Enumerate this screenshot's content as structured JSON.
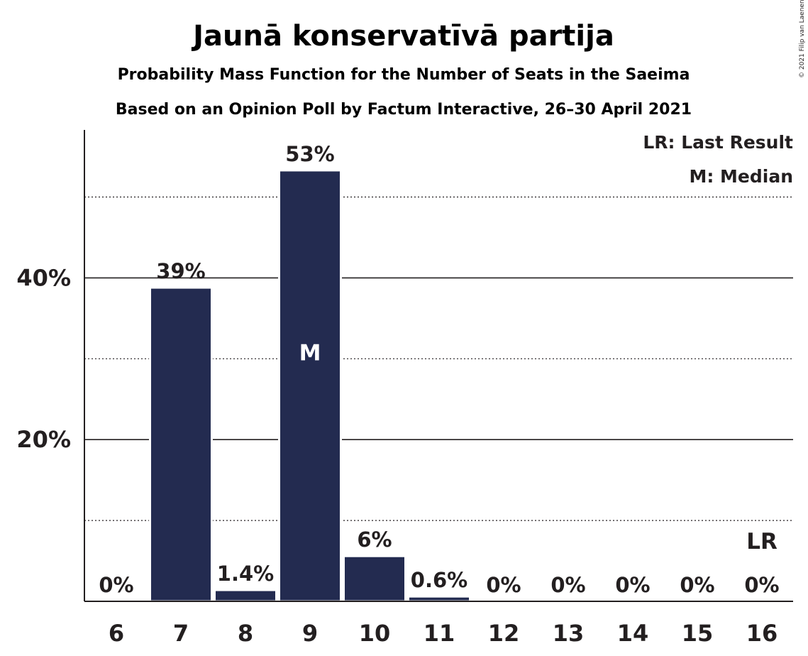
{
  "title": "Jaunā konservatīvā partija",
  "subtitle1": "Probability Mass Function for the Number of Seats in the Saeima",
  "subtitle2": "Based on an Opinion Poll by Factum Interactive, 26–30 April 2021",
  "copyright": "© 2021 Filip van Laenen",
  "legend": {
    "last_result": "LR: Last Result",
    "median": "M: Median"
  },
  "colors": {
    "bar": "#232b50",
    "text": "#231f20"
  },
  "chart_data": {
    "type": "bar",
    "xlabel": "",
    "ylabel": "",
    "categories": [
      "6",
      "7",
      "8",
      "9",
      "10",
      "11",
      "12",
      "13",
      "14",
      "15",
      "16"
    ],
    "values": [
      0,
      38.8,
      1.4,
      53.3,
      5.6,
      0.6,
      0,
      0,
      0,
      0,
      0
    ],
    "labels": [
      "0%",
      "39%",
      "1.4%",
      "53%",
      "6%",
      "0.6%",
      "0%",
      "0%",
      "0%",
      "0%",
      "0%"
    ],
    "ylim": [
      0,
      58.3
    ],
    "yticks": [
      {
        "value": 20,
        "label": "20%"
      },
      {
        "value": 40,
        "label": "40%"
      }
    ],
    "minor_gridlines": [
      10,
      30,
      50
    ],
    "median_category": "9",
    "median_label": "M",
    "last_result_category": "16",
    "last_result_label": "LR",
    "grid": true,
    "legend_position": "top-right"
  }
}
